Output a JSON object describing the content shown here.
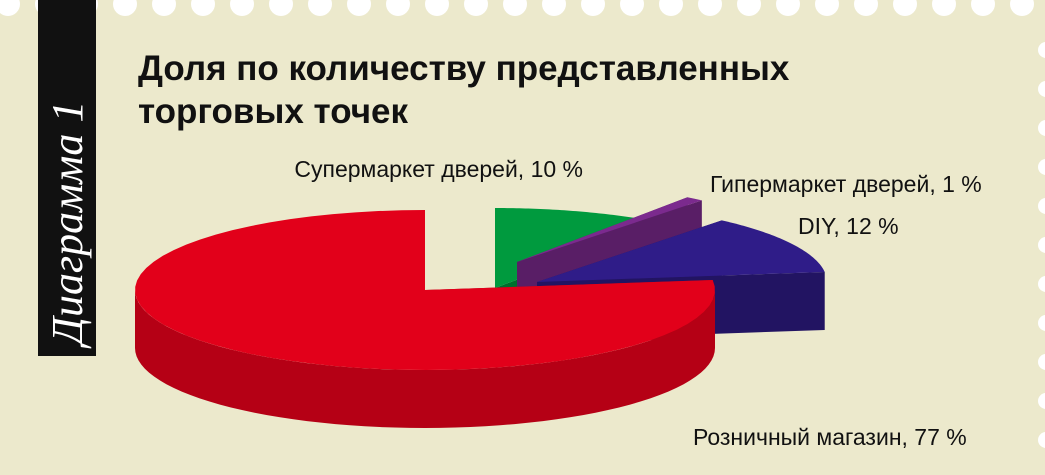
{
  "chart_data": {
    "type": "pie",
    "side_label": "Диаграмма 1",
    "title": [
      "Доля по количеству представленных",
      "торговых точек"
    ],
    "categories": [
      "Супермаркет дверей",
      "Гипермаркет дверей",
      "DIY",
      "Розничный магазин"
    ],
    "values": [
      10,
      1,
      12,
      77
    ],
    "value_labels": [
      "Супермаркет дверей, 10 %",
      "Гипермаркет дверей, 1 %",
      "DIY, 12 %",
      "Розничный магазин, 77 %"
    ],
    "colors": [
      "#009a3e",
      "#7b2a8e",
      "#2f1c88",
      "#e2001a"
    ]
  }
}
